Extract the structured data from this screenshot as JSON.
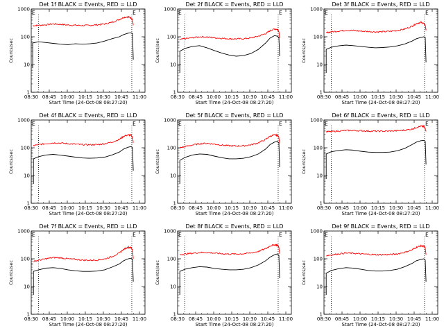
{
  "chart_data": [
    {
      "type": "line",
      "title": "Det 1f BLACK = Events, RED = LLD",
      "xlabel": "Start Time (24-Oct-08 08:27:20)",
      "ylabel": "Counts/sec",
      "yscale": "log",
      "ylim": [
        1,
        1000
      ],
      "xlim": [
        "08:30",
        "11:05"
      ],
      "xticks": [
        "08:30",
        "08:45",
        "10:00",
        "10:15",
        "10:30",
        "10:45",
        "11:00"
      ],
      "yticks": [
        "1",
        "10",
        "100",
        "1000"
      ],
      "marker_left": "E",
      "marker_right": "E",
      "event_times": [
        "08:32",
        "08:40",
        "08:50",
        "09:00",
        "09:10",
        "09:20",
        "09:30",
        "09:40",
        "09:50",
        "10:00",
        "10:10",
        "10:20",
        "10:30",
        "10:36",
        "10:42",
        "10:46",
        "10:48",
        "10:49"
      ],
      "series": [
        {
          "name": "Events",
          "color": "#000000",
          "values": [
            60,
            66,
            62,
            58,
            54,
            52,
            56,
            54,
            56,
            60,
            70,
            85,
            100,
            120,
            135,
            140,
            130,
            15
          ]
        },
        {
          "name": "LLD",
          "color": "#ff0000",
          "values": [
            250,
            260,
            270,
            290,
            280,
            265,
            260,
            255,
            258,
            270,
            290,
            330,
            420,
            500,
            520,
            480,
            400,
            260
          ]
        }
      ]
    },
    {
      "type": "line",
      "title": "Det 2f BLACK = Events, RED = LLD",
      "xlabel": "Start Time (24-Oct-08 08:27:20)",
      "ylabel": "Counts/sec",
      "yscale": "log",
      "ylim": [
        1,
        1000
      ],
      "xlim": [
        "08:30",
        "11:05"
      ],
      "xticks": [
        "08:30",
        "08:45",
        "10:00",
        "10:15",
        "10:30",
        "10:45",
        "11:00"
      ],
      "yticks": [
        "1",
        "10",
        "100",
        "1000"
      ],
      "marker_left": "E",
      "marker_right": "E",
      "event_times": [
        "08:33",
        "08:40",
        "08:50",
        "09:00",
        "09:10",
        "09:20",
        "09:30",
        "09:40",
        "09:50",
        "10:00",
        "10:10",
        "10:20",
        "10:30",
        "10:36",
        "10:42",
        "10:46",
        "10:48",
        "10:49"
      ],
      "series": [
        {
          "name": "Events",
          "color": "#000000",
          "values": [
            30,
            38,
            45,
            48,
            40,
            32,
            26,
            22,
            20,
            21,
            25,
            35,
            60,
            90,
            110,
            105,
            95,
            20
          ]
        },
        {
          "name": "LLD",
          "color": "#ff0000",
          "values": [
            80,
            85,
            92,
            100,
            98,
            92,
            88,
            85,
            84,
            85,
            90,
            105,
            130,
            165,
            190,
            185,
            160,
            90
          ]
        }
      ]
    },
    {
      "type": "line",
      "title": "Det 3f BLACK = Events, RED = LLD",
      "xlabel": "Start Time (24-Oct-08 08:27:20)",
      "ylabel": "Counts/sec",
      "yscale": "log",
      "ylim": [
        1,
        1000
      ],
      "xlim": [
        "08:30",
        "11:05"
      ],
      "xticks": [
        "08:30",
        "08:45",
        "10:00",
        "10:15",
        "10:30",
        "10:45",
        "11:00"
      ],
      "yticks": [
        "1",
        "10",
        "100",
        "1000"
      ],
      "marker_left": "E",
      "marker_right": "E",
      "event_times": [
        "08:33",
        "08:40",
        "08:50",
        "09:00",
        "09:10",
        "09:20",
        "09:30",
        "09:40",
        "09:50",
        "10:00",
        "10:10",
        "10:20",
        "10:30",
        "10:36",
        "10:42",
        "10:46",
        "10:48",
        "10:49"
      ],
      "series": [
        {
          "name": "Events",
          "color": "#000000",
          "values": [
            35,
            42,
            47,
            50,
            48,
            45,
            42,
            40,
            41,
            43,
            47,
            55,
            70,
            85,
            95,
            100,
            95,
            12
          ]
        },
        {
          "name": "LLD",
          "color": "#ff0000",
          "values": [
            140,
            150,
            160,
            170,
            168,
            160,
            155,
            150,
            152,
            158,
            168,
            190,
            240,
            300,
            330,
            300,
            260,
            170
          ]
        }
      ]
    },
    {
      "type": "line",
      "title": "Det 4f BLACK = Events, RED = LLD",
      "xlabel": "Start Time (24-Oct-08 08:27:20)",
      "ylabel": "Counts/sec",
      "yscale": "log",
      "ylim": [
        1,
        1000
      ],
      "xlim": [
        "08:30",
        "11:05"
      ],
      "xticks": [
        "08:30",
        "08:45",
        "10:00",
        "10:15",
        "10:30",
        "10:45",
        "11:00"
      ],
      "yticks": [
        "1",
        "10",
        "100",
        "1000"
      ],
      "marker_left": "E",
      "marker_right": "E",
      "event_times": [
        "08:33",
        "08:40",
        "08:50",
        "09:00",
        "09:10",
        "09:20",
        "09:30",
        "09:40",
        "09:50",
        "10:00",
        "10:10",
        "10:20",
        "10:30",
        "10:36",
        "10:42",
        "10:46",
        "10:48",
        "10:49"
      ],
      "series": [
        {
          "name": "Events",
          "color": "#000000",
          "values": [
            40,
            48,
            55,
            58,
            54,
            50,
            46,
            43,
            42,
            43,
            46,
            55,
            70,
            90,
            105,
            110,
            100,
            15
          ]
        },
        {
          "name": "LLD",
          "color": "#ff0000",
          "values": [
            120,
            130,
            140,
            150,
            148,
            140,
            135,
            130,
            128,
            130,
            140,
            160,
            200,
            260,
            290,
            280,
            240,
            150
          ]
        }
      ]
    },
    {
      "type": "line",
      "title": "Det 5f BLACK = Events, RED = LLD",
      "xlabel": "Start Time (24-Oct-08 08:27:20)",
      "ylabel": "Counts/sec",
      "yscale": "log",
      "ylim": [
        1,
        1000
      ],
      "xlim": [
        "08:30",
        "11:05"
      ],
      "xticks": [
        "08:30",
        "08:45",
        "10:00",
        "10:15",
        "10:30",
        "10:45",
        "11:00"
      ],
      "yticks": [
        "1",
        "10",
        "100",
        "1000"
      ],
      "marker_left": "E",
      "marker_right": "E",
      "event_times": [
        "08:33",
        "08:40",
        "08:50",
        "09:00",
        "09:10",
        "09:20",
        "09:30",
        "09:40",
        "09:50",
        "10:00",
        "10:10",
        "10:20",
        "10:30",
        "10:36",
        "10:42",
        "10:46",
        "10:48",
        "10:49"
      ],
      "series": [
        {
          "name": "Events",
          "color": "#000000",
          "values": [
            35,
            45,
            55,
            60,
            58,
            50,
            44,
            40,
            40,
            42,
            48,
            60,
            90,
            130,
            160,
            170,
            150,
            20
          ]
        },
        {
          "name": "LLD",
          "color": "#ff0000",
          "values": [
            100,
            110,
            125,
            140,
            145,
            135,
            125,
            118,
            116,
            118,
            128,
            150,
            200,
            260,
            290,
            280,
            240,
            150
          ]
        }
      ]
    },
    {
      "type": "line",
      "title": "Det 6f BLACK = Events, RED = LLD",
      "xlabel": "Start Time (24-Oct-08 08:27:20)",
      "ylabel": "Counts/sec",
      "yscale": "log",
      "ylim": [
        1,
        1000
      ],
      "xlim": [
        "08:30",
        "11:05"
      ],
      "xticks": [
        "08:30",
        "08:45",
        "10:00",
        "10:15",
        "10:30",
        "10:45",
        "11:00"
      ],
      "yticks": [
        "1",
        "10",
        "100",
        "1000"
      ],
      "marker_left": "E",
      "marker_right": "E",
      "event_times": [
        "08:33",
        "08:40",
        "08:50",
        "09:00",
        "09:10",
        "09:20",
        "09:30",
        "09:40",
        "09:50",
        "10:00",
        "10:10",
        "10:20",
        "10:30",
        "10:36",
        "10:42",
        "10:46",
        "10:48",
        "10:49"
      ],
      "series": [
        {
          "name": "Events",
          "color": "#000000",
          "values": [
            60,
            72,
            80,
            85,
            82,
            75,
            70,
            68,
            68,
            70,
            78,
            95,
            130,
            160,
            180,
            185,
            170,
            25
          ]
        },
        {
          "name": "LLD",
          "color": "#ff0000",
          "values": [
            380,
            385,
            400,
            420,
            420,
            410,
            400,
            395,
            395,
            398,
            410,
            430,
            470,
            540,
            600,
            580,
            500,
            390
          ]
        }
      ]
    },
    {
      "type": "line",
      "title": "Det 7f BLACK = Events, RED = LLD",
      "xlabel": "Start Time (24-Oct-08 08:27:20)",
      "ylabel": "Counts/sec",
      "yscale": "log",
      "ylim": [
        1,
        1000
      ],
      "xlim": [
        "08:30",
        "11:05"
      ],
      "xticks": [
        "08:30",
        "08:45",
        "10:00",
        "10:15",
        "10:30",
        "10:45",
        "11:00"
      ],
      "yticks": [
        "1",
        "10",
        "100",
        "1000"
      ],
      "marker_left": "E",
      "marker_right": "E",
      "event_times": [
        "08:33",
        "08:40",
        "08:50",
        "09:00",
        "09:10",
        "09:20",
        "09:30",
        "09:40",
        "09:50",
        "10:00",
        "10:10",
        "10:20",
        "10:30",
        "10:36",
        "10:42",
        "10:46",
        "10:48",
        "10:49"
      ],
      "series": [
        {
          "name": "Events",
          "color": "#000000",
          "values": [
            35,
            40,
            46,
            48,
            45,
            40,
            37,
            35,
            35,
            36,
            40,
            50,
            65,
            85,
            100,
            105,
            95,
            15
          ]
        },
        {
          "name": "LLD",
          "color": "#ff0000",
          "values": [
            80,
            88,
            100,
            110,
            108,
            100,
            95,
            90,
            88,
            90,
            98,
            120,
            160,
            220,
            260,
            250,
            210,
            100
          ]
        }
      ]
    },
    {
      "type": "line",
      "title": "Det 8f BLACK = Events, RED = LLD",
      "xlabel": "Start Time (24-Oct-08 08:27:20)",
      "ylabel": "Counts/sec",
      "yscale": "log",
      "ylim": [
        1,
        1000
      ],
      "xlim": [
        "08:30",
        "11:05"
      ],
      "xticks": [
        "08:30",
        "08:45",
        "10:00",
        "10:15",
        "10:30",
        "10:45",
        "11:00"
      ],
      "yticks": [
        "1",
        "10",
        "100",
        "1000"
      ],
      "marker_left": "E",
      "marker_right": "E",
      "event_times": [
        "08:33",
        "08:40",
        "08:50",
        "09:00",
        "09:10",
        "09:20",
        "09:30",
        "09:40",
        "09:50",
        "10:00",
        "10:10",
        "10:20",
        "10:30",
        "10:36",
        "10:42",
        "10:46",
        "10:48",
        "10:49"
      ],
      "series": [
        {
          "name": "Events",
          "color": "#000000",
          "values": [
            35,
            42,
            48,
            52,
            50,
            45,
            42,
            40,
            40,
            42,
            48,
            60,
            85,
            115,
            140,
            150,
            135,
            20
          ]
        },
        {
          "name": "LLD",
          "color": "#ff0000",
          "values": [
            140,
            148,
            158,
            168,
            168,
            160,
            152,
            148,
            148,
            152,
            162,
            185,
            230,
            290,
            320,
            310,
            260,
            150
          ]
        }
      ]
    },
    {
      "type": "line",
      "title": "Det 9f BLACK = Events, RED = LLD",
      "xlabel": "Start Time (24-Oct-08 08:27:20)",
      "ylabel": "Counts/sec",
      "yscale": "log",
      "ylim": [
        1,
        1000
      ],
      "xlim": [
        "08:30",
        "11:05"
      ],
      "xticks": [
        "08:30",
        "08:45",
        "10:00",
        "10:15",
        "10:30",
        "10:45",
        "11:00"
      ],
      "yticks": [
        "1",
        "10",
        "100",
        "1000"
      ],
      "marker_left": "E",
      "marker_right": "E",
      "event_times": [
        "08:33",
        "08:40",
        "08:50",
        "09:00",
        "09:10",
        "09:20",
        "09:30",
        "09:40",
        "09:50",
        "10:00",
        "10:10",
        "10:20",
        "10:30",
        "10:36",
        "10:42",
        "10:46",
        "10:48",
        "10:49"
      ],
      "series": [
        {
          "name": "Events",
          "color": "#000000",
          "values": [
            30,
            38,
            44,
            48,
            46,
            42,
            38,
            36,
            36,
            38,
            42,
            52,
            68,
            85,
            95,
            100,
            90,
            15
          ]
        },
        {
          "name": "LLD",
          "color": "#ff0000",
          "values": [
            130,
            138,
            150,
            160,
            158,
            150,
            145,
            140,
            140,
            142,
            150,
            170,
            210,
            260,
            290,
            280,
            240,
            140
          ]
        }
      ]
    }
  ]
}
